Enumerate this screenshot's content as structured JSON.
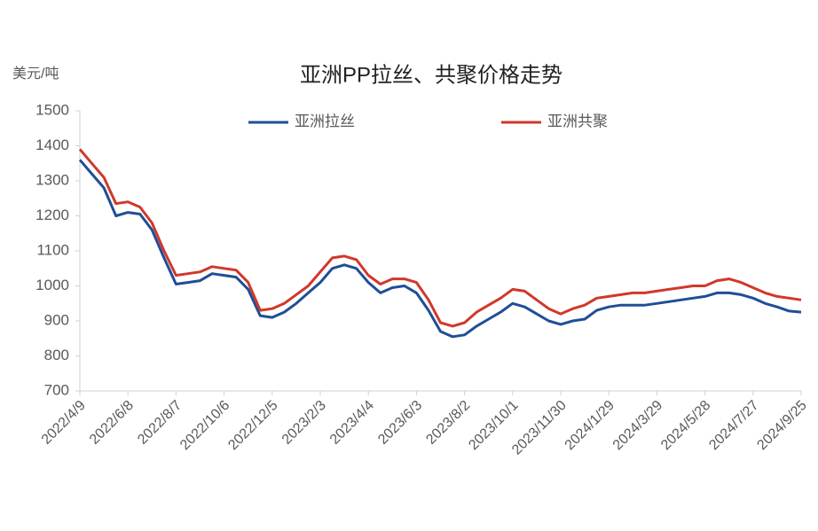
{
  "chart_data": {
    "type": "line",
    "title": "亚洲PP拉丝、共聚价格走势",
    "ylabel": "美元/吨",
    "categories": [
      "2022/4/9",
      null,
      null,
      null,
      "2022/6/8",
      null,
      null,
      null,
      "2022/8/7",
      null,
      null,
      null,
      "2022/10/6",
      null,
      null,
      null,
      "2022/12/5",
      null,
      null,
      null,
      "2023/2/3",
      null,
      null,
      null,
      "2023/4/4",
      null,
      null,
      null,
      "2023/6/3",
      null,
      null,
      null,
      "2023/8/2",
      null,
      null,
      null,
      "2023/10/1",
      null,
      null,
      null,
      "2023/11/30",
      null,
      null,
      null,
      "2024/1/29",
      null,
      null,
      null,
      "2024/3/29",
      null,
      null,
      null,
      "2024/5/28",
      null,
      null,
      null,
      "2024/7/27",
      null,
      null,
      null,
      "2024/9/25"
    ],
    "series": [
      {
        "name": "亚洲拉丝",
        "color": "#1f4e96",
        "values": [
          1360,
          1320,
          1280,
          1200,
          1210,
          1205,
          1160,
          1080,
          1005,
          1010,
          1015,
          1035,
          1030,
          1025,
          990,
          915,
          910,
          925,
          950,
          980,
          1010,
          1050,
          1060,
          1050,
          1010,
          980,
          995,
          1000,
          980,
          930,
          870,
          855,
          860,
          885,
          905,
          925,
          950,
          940,
          920,
          900,
          890,
          900,
          905,
          930,
          940,
          945,
          945,
          945,
          950,
          955,
          960,
          965,
          970,
          980,
          980,
          975,
          965,
          950,
          940,
          928,
          925
        ]
      },
      {
        "name": "亚洲共聚",
        "color": "#d0382b",
        "values": [
          1390,
          1350,
          1310,
          1235,
          1240,
          1225,
          1180,
          1100,
          1030,
          1035,
          1040,
          1055,
          1050,
          1045,
          1010,
          930,
          935,
          950,
          975,
          1000,
          1040,
          1080,
          1085,
          1075,
          1030,
          1005,
          1020,
          1020,
          1010,
          960,
          895,
          885,
          895,
          925,
          945,
          965,
          990,
          985,
          960,
          935,
          920,
          935,
          945,
          965,
          970,
          975,
          980,
          980,
          985,
          990,
          995,
          1000,
          1000,
          1015,
          1020,
          1010,
          995,
          980,
          970,
          965,
          960
        ]
      }
    ],
    "ylim": [
      700,
      1500
    ],
    "yticks": [
      700,
      800,
      900,
      1000,
      1100,
      1200,
      1300,
      1400,
      1500
    ],
    "grid": false,
    "legend": "top"
  }
}
